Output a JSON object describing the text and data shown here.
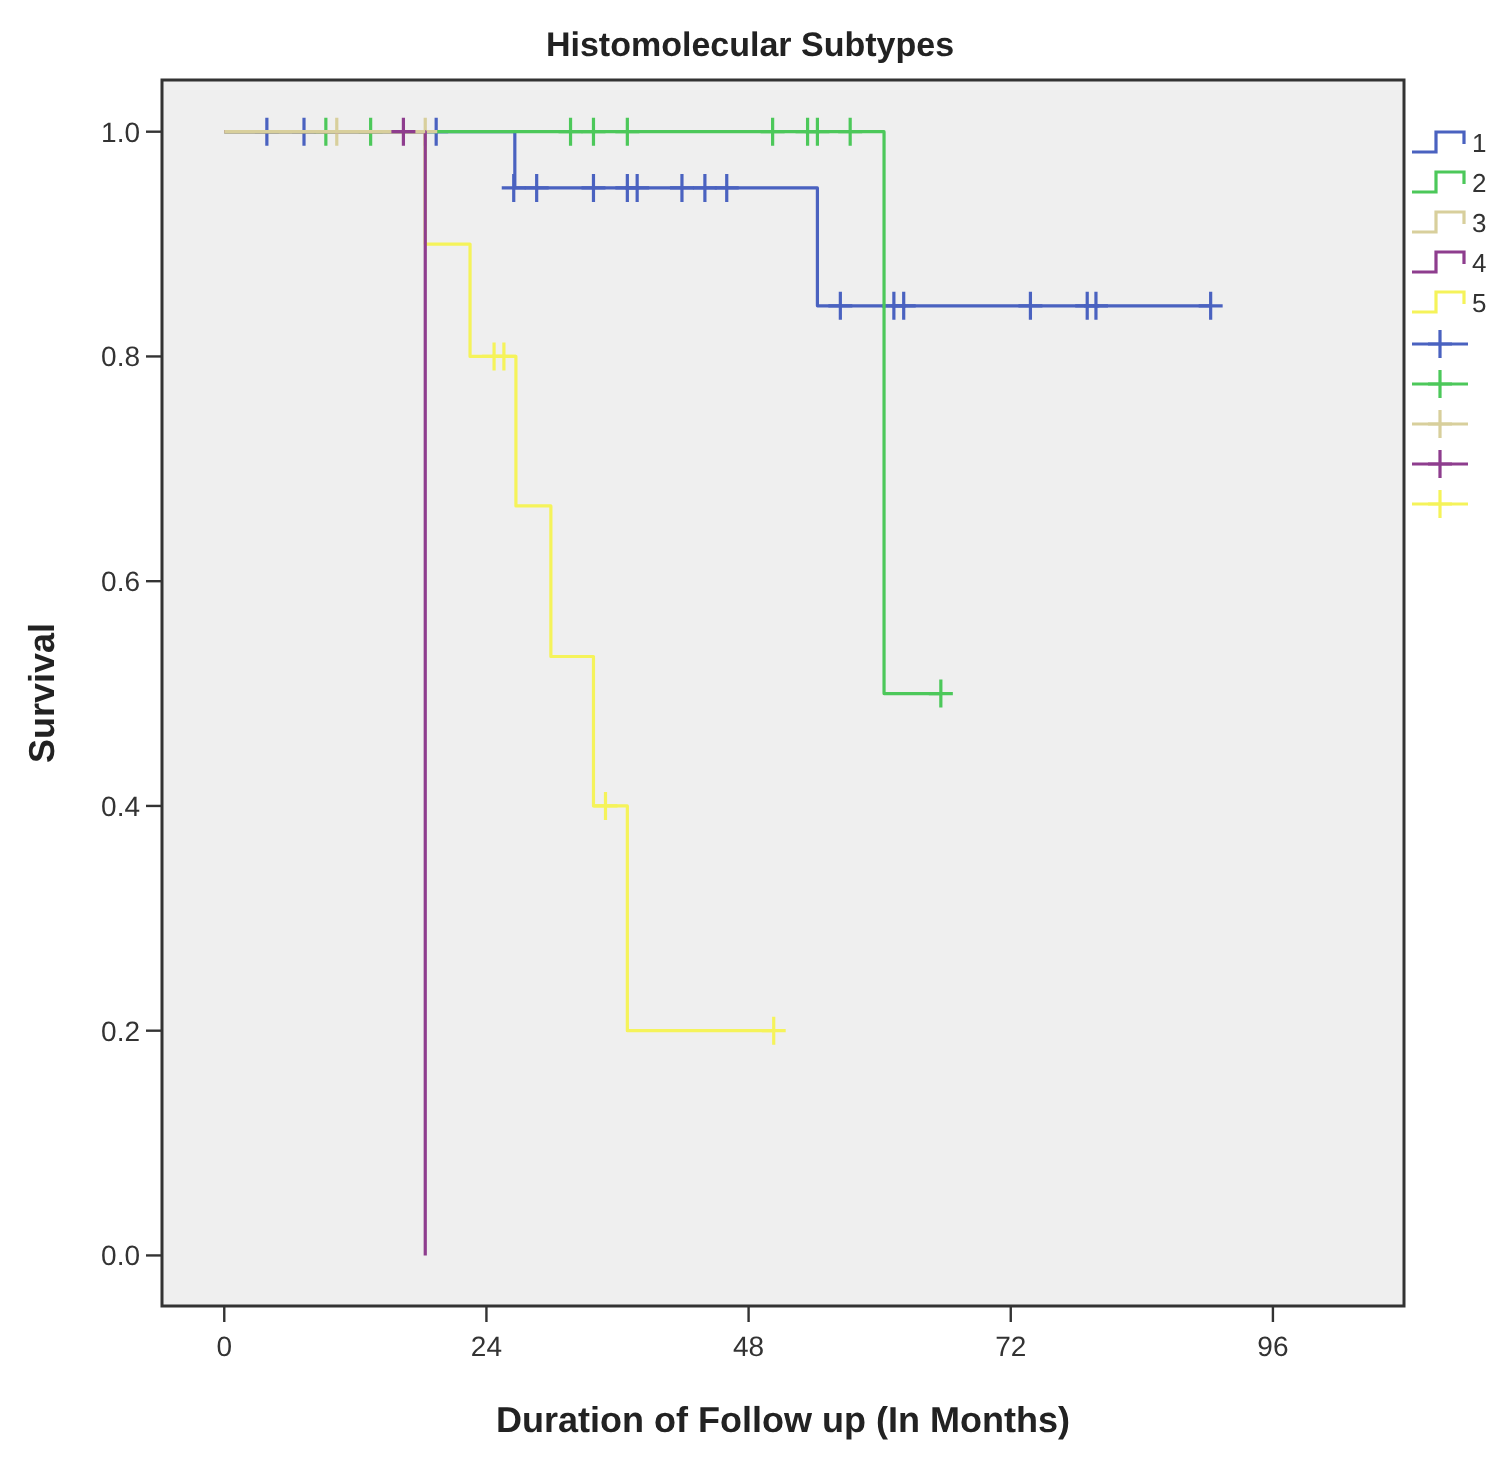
{
  "chart_data": {
    "type": "step",
    "title": "Histomolecular Subtypes",
    "xlabel": "Duration of Follow up (In Months)",
    "ylabel": "Survival",
    "xlim": [
      -5.7,
      108
    ],
    "ylim": [
      -0.045,
      1.046
    ],
    "xticks": [
      0,
      24,
      48,
      72,
      96
    ],
    "yticks": [
      {
        "value": 0,
        "label": "0.0"
      },
      {
        "value": 0.2,
        "label": "0.2"
      },
      {
        "value": 0.4,
        "label": "0.4"
      },
      {
        "value": 0.6,
        "label": "0.6"
      },
      {
        "value": 0.8,
        "label": "0.8"
      },
      {
        "value": 1,
        "label": "1.0"
      }
    ],
    "grid": false,
    "legend": "right",
    "line_style": "solid",
    "series": [
      {
        "name": "1",
        "color": "#4a62c0",
        "x": [
          0,
          26.6,
          54.3,
          90.3
        ],
        "values": [
          1,
          0.95,
          0.845,
          0.845
        ]
      },
      {
        "name": "2",
        "color": "#4cc85a",
        "x": [
          0,
          60.4,
          65.6
        ],
        "values": [
          1,
          0.5,
          0.5
        ]
      },
      {
        "name": "3",
        "color": "#d8cf9c",
        "x": [
          0,
          18.4
        ],
        "values": [
          1,
          1
        ]
      },
      {
        "name": "4",
        "color": "#8e3d8e",
        "x": [
          0,
          18.4
        ],
        "values": [
          1,
          0
        ]
      },
      {
        "name": "5",
        "color": "#f5f35a",
        "x": [
          0,
          18.4,
          22.5,
          26.7,
          29.9,
          33.8,
          36.9,
          50.3
        ],
        "values": [
          1,
          0.9,
          0.8,
          0.667,
          0.533,
          0.4,
          0.2,
          0.2
        ]
      },
      {
        "type": "scatter",
        "marker": "cross",
        "color": "#4a62c0",
        "x": [
          3.9,
          7.3,
          19.4,
          26.5,
          28.6,
          33.8,
          36.9,
          37.8,
          41.9,
          44,
          46,
          56.4,
          61.3,
          62.2,
          73.8,
          79,
          79.8,
          90.3
        ],
        "values": [
          1,
          1,
          1,
          0.95,
          0.95,
          0.95,
          0.95,
          0.95,
          0.95,
          0.95,
          0.95,
          0.845,
          0.845,
          0.845,
          0.845,
          0.845,
          0.845,
          0.845
        ]
      },
      {
        "type": "scatter",
        "marker": "cross",
        "color": "#4cc85a",
        "x": [
          9.3,
          13.4,
          31.7,
          33.8,
          36.9,
          50.2,
          53.4,
          54.3,
          57.3,
          65.6
        ],
        "values": [
          1,
          1,
          1,
          1,
          1,
          1,
          1,
          1,
          1,
          0.5
        ]
      },
      {
        "type": "scatter",
        "marker": "cross",
        "color": "#d8cf9c",
        "x": [
          10.3,
          18.4
        ],
        "values": [
          1,
          1
        ]
      },
      {
        "type": "scatter",
        "marker": "cross",
        "color": "#8e3d8e",
        "x": [
          16.4
        ],
        "values": [
          1
        ]
      },
      {
        "type": "scatter",
        "marker": "cross",
        "color": "#f5f35a",
        "x": [
          24.7,
          25.6,
          34.9,
          50.3
        ],
        "values": [
          0.8,
          0.8,
          0.4,
          0.2
        ]
      }
    ]
  }
}
